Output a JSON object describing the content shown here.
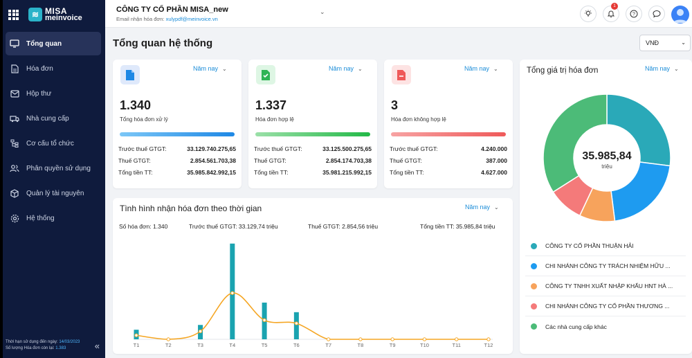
{
  "brand": {
    "line1": "MISA",
    "line2": "meinvoice"
  },
  "sidebar": {
    "items": [
      {
        "label": "Tổng quan",
        "icon": "monitor-icon"
      },
      {
        "label": "Hóa đơn",
        "icon": "document-icon"
      },
      {
        "label": "Hộp thư",
        "icon": "mail-icon"
      },
      {
        "label": "Nhà cung cấp",
        "icon": "truck-icon"
      },
      {
        "label": "Cơ cấu tổ chức",
        "icon": "org-tree-icon"
      },
      {
        "label": "Phân quyền sử dụng",
        "icon": "users-icon"
      },
      {
        "label": "Quản lý tài nguyên",
        "icon": "box-icon"
      },
      {
        "label": "Hệ thống",
        "icon": "gear-icon"
      }
    ],
    "footer": {
      "expiry_label": "Thời hạn sử dụng đến ngày: ",
      "expiry_date": "14/03/2023",
      "remaining_label": "Số lượng Hóa đơn còn lại: ",
      "remaining_count": "1.383"
    }
  },
  "header": {
    "company": "CÔNG TY CỔ PHẦN MISA_new",
    "email_label": "Email nhận hóa đơn: ",
    "email": "xulypdf@meinvoice.vn",
    "notification_count": "1"
  },
  "page": {
    "title": "Tổng quan hệ thống",
    "currency": "VNĐ"
  },
  "period_label": "Năm nay",
  "stats": [
    {
      "value": "1.340",
      "label": "Tổng hóa đơn xử lý",
      "color": "#1e88e5",
      "rows": [
        {
          "k": "Trước thuế GTGT:",
          "v": "33.129.740.275,65"
        },
        {
          "k": "Thuế GTGT:",
          "v": "2.854.561.703,38"
        },
        {
          "k": "Tổng tiền TT:",
          "v": "35.985.842.992,15"
        }
      ]
    },
    {
      "value": "1.337",
      "label": "Hóa đơn hợp lệ",
      "color": "#43c463",
      "rows": [
        {
          "k": "Trước thuế GTGT:",
          "v": "33.125.500.275,65"
        },
        {
          "k": "Thuế GTGT:",
          "v": "2.854.174.703,38"
        },
        {
          "k": "Tổng tiền TT:",
          "v": "35.981.215.992,15"
        }
      ]
    },
    {
      "value": "3",
      "label": "Hóa đơn không hợp lệ",
      "color": "#ef5a5a",
      "rows": [
        {
          "k": "Trước thuế GTGT:",
          "v": "4.240.000"
        },
        {
          "k": "Thuế GTGT:",
          "v": "387.000"
        },
        {
          "k": "Tổng tiền TT:",
          "v": "4.627.000"
        }
      ]
    }
  ],
  "trend": {
    "title": "Tình hình nhận hóa đơn theo thời gian",
    "summary": [
      "Số hóa đơn: 1.340",
      "Trước thuế GTGT: 33.129,74 triệu",
      "Thuế GTGT: 2.854,56 triệu",
      "Tổng tiền TT: 35.985,84 triệu"
    ]
  },
  "donut": {
    "title": "Tổng giá trị hóa đơn",
    "center_value": "35.985,84",
    "center_unit": "triệu",
    "legend": [
      {
        "label": "CÔNG TY CỔ PHẦN THUẬN HẢI",
        "color": "#2aa9b8"
      },
      {
        "label": "CHI NHÁNH CÔNG TY TRÁCH NHIỆM HỮU ...",
        "color": "#1e9bf0"
      },
      {
        "label": "CÔNG TY TNHH XUẤT NHẬP KHẨU HNT HÀ ...",
        "color": "#f7a35c"
      },
      {
        "label": "CHI NHÁNH CÔNG TY CỔ PHẦN THƯƠNG ...",
        "color": "#f47a7a"
      },
      {
        "label": "Các nhà cung cấp khác",
        "color": "#4cbb78"
      }
    ]
  },
  "chart_data": [
    {
      "type": "bar",
      "categories": [
        "T1",
        "T2",
        "T3",
        "T4",
        "T5",
        "T6",
        "T7",
        "T8",
        "T9",
        "T10",
        "T11",
        "T12"
      ],
      "series": [
        {
          "values": [
            12,
            0,
            18,
            120,
            46,
            34,
            0,
            0,
            0,
            0,
            0,
            0
          ],
          "color": "#1aa3b0"
        },
        {
          "values": [
            5,
            0,
            10,
            58,
            24,
            20,
            0,
            0,
            0,
            0,
            0,
            0
          ],
          "color": "#f5a623"
        }
      ],
      "ylim": [
        0,
        125
      ],
      "grid": false
    },
    {
      "type": "pie",
      "categories": [
        "CÔNG TY CỔ PHẦN THUẬN HẢI",
        "CHI NHÁNH CÔNG TY TRÁCH NHIỆM HỮU ...",
        "CÔNG TY TNHH XUẤT NHẬP KHẨU HNT HÀ ...",
        "CHI NHÁNH CÔNG TY CỔ PHẦN THƯƠNG ...",
        "Các nhà cung cấp khác"
      ],
      "values": [
        27,
        21,
        9,
        9,
        34
      ]
    }
  ]
}
